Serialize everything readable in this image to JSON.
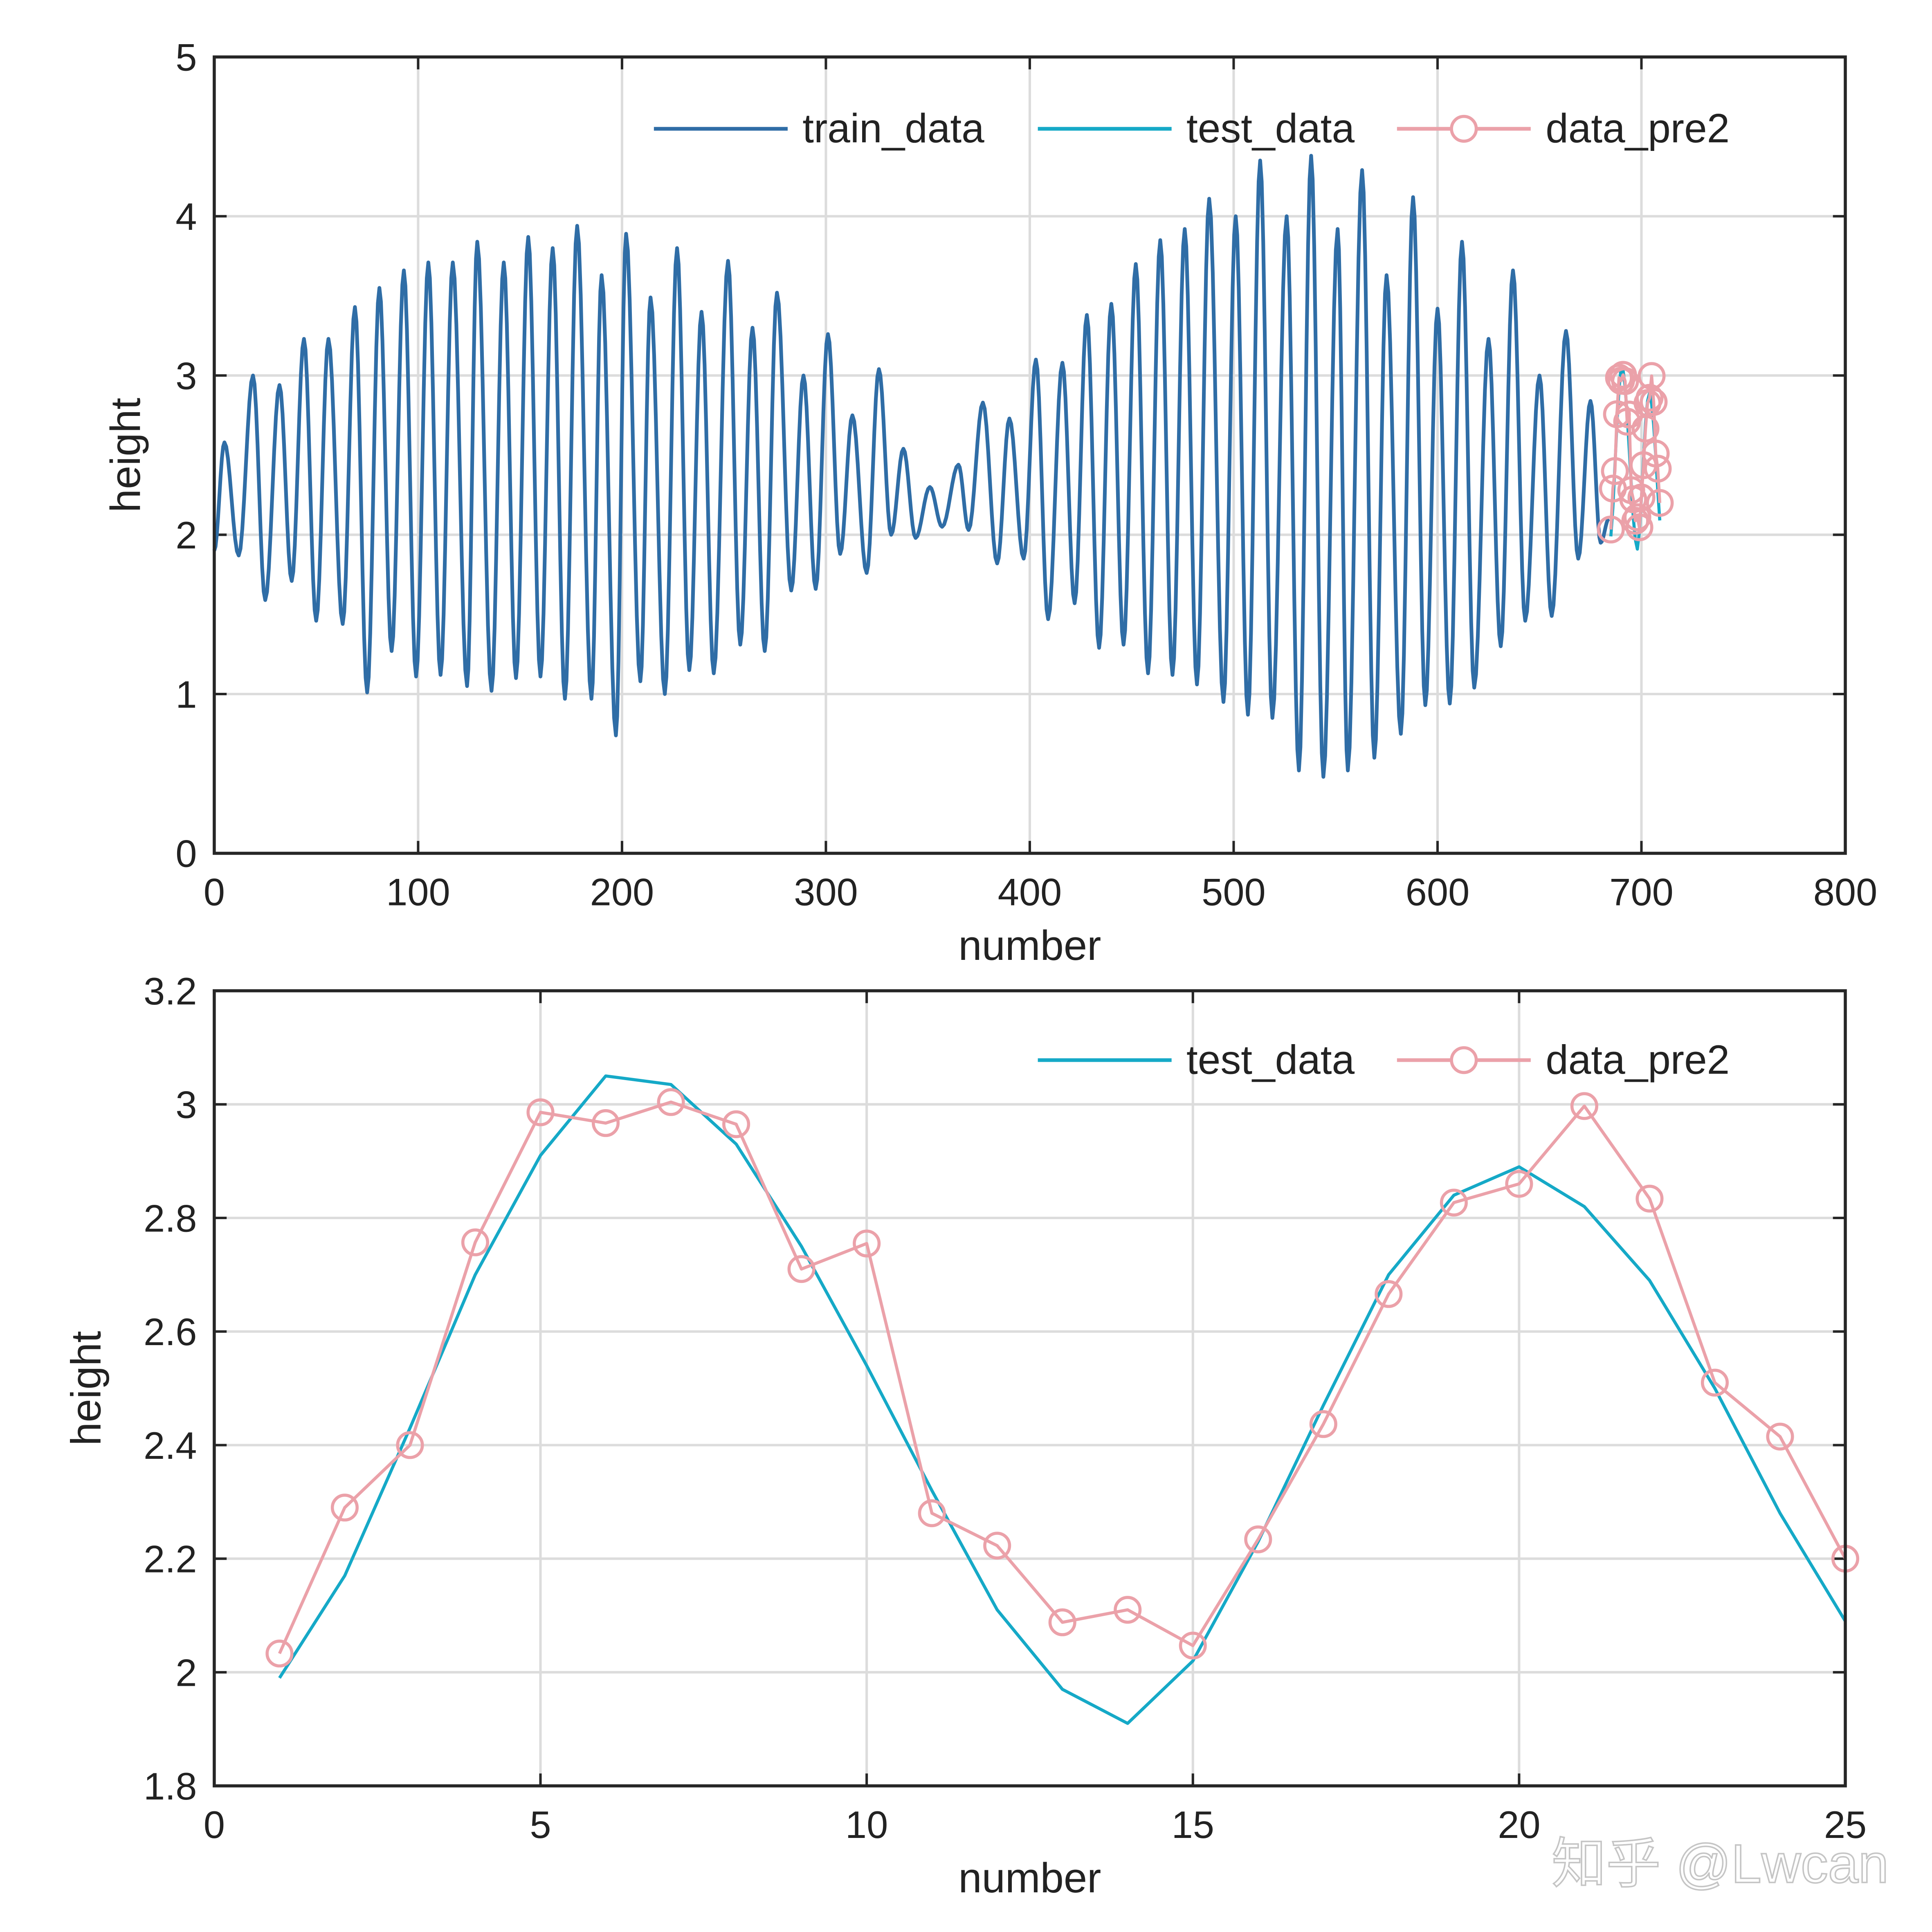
{
  "colors": {
    "train_data": "#2f6da6",
    "test_data": "#15a9c7",
    "data_pre2": "#eba1a9",
    "grid": "#dcdcdc",
    "axis": "#262626"
  },
  "watermark": "知乎 @Lwcan",
  "chart_data": [
    {
      "type": "line",
      "xlabel": "number",
      "ylabel": "height",
      "xlim": [
        0,
        800
      ],
      "ylim": [
        0,
        5
      ],
      "xticks": [
        0,
        100,
        200,
        300,
        400,
        500,
        600,
        700,
        800
      ],
      "yticks": [
        0,
        1,
        2,
        3,
        4,
        5
      ],
      "grid": true,
      "legend_position": "top-right",
      "legend": [
        "train_data",
        "test_data",
        "data_pre2"
      ],
      "series": [
        {
          "name": "train_data",
          "note_extrema": "local peaks and troughs (x, height)",
          "extrema": [
            [
              0,
              1.9
            ],
            [
              5,
              2.58
            ],
            [
              12,
              1.87
            ],
            [
              19,
              3.0
            ],
            [
              25,
              1.59
            ],
            [
              32,
              2.94
            ],
            [
              38,
              1.71
            ],
            [
              44,
              3.23
            ],
            [
              50,
              1.46
            ],
            [
              56,
              3.23
            ],
            [
              63,
              1.44
            ],
            [
              69,
              3.43
            ],
            [
              75,
              1.01
            ],
            [
              81,
              3.55
            ],
            [
              87,
              1.27
            ],
            [
              93,
              3.66
            ],
            [
              99,
              1.11
            ],
            [
              105,
              3.71
            ],
            [
              111,
              1.12
            ],
            [
              117,
              3.71
            ],
            [
              124,
              1.05
            ],
            [
              129,
              3.84
            ],
            [
              136,
              1.02
            ],
            [
              142,
              3.71
            ],
            [
              148,
              1.1
            ],
            [
              154,
              3.87
            ],
            [
              160,
              1.11
            ],
            [
              166,
              3.8
            ],
            [
              172,
              0.97
            ],
            [
              178,
              3.94
            ],
            [
              185,
              0.97
            ],
            [
              190,
              3.63
            ],
            [
              197,
              0.74
            ],
            [
              202,
              3.89
            ],
            [
              209,
              1.08
            ],
            [
              214,
              3.49
            ],
            [
              221,
              1.0
            ],
            [
              227,
              3.8
            ],
            [
              233,
              1.15
            ],
            [
              239,
              3.4
            ],
            [
              245,
              1.13
            ],
            [
              252,
              3.72
            ],
            [
              258,
              1.31
            ],
            [
              264,
              3.3
            ],
            [
              270,
              1.27
            ],
            [
              276,
              3.52
            ],
            [
              283,
              1.65
            ],
            [
              289,
              3.0
            ],
            [
              295,
              1.66
            ],
            [
              301,
              3.26
            ],
            [
              307,
              1.88
            ],
            [
              313,
              2.75
            ],
            [
              320,
              1.76
            ],
            [
              326,
              3.04
            ],
            [
              332,
              2.0
            ],
            [
              338,
              2.54
            ],
            [
              344,
              1.98
            ],
            [
              351,
              2.3
            ],
            [
              357,
              2.05
            ],
            [
              365,
              2.44
            ],
            [
              370,
              2.03
            ],
            [
              377,
              2.83
            ],
            [
              384,
              1.82
            ],
            [
              390,
              2.73
            ],
            [
              397,
              1.85
            ],
            [
              403,
              3.1
            ],
            [
              409,
              1.47
            ],
            [
              416,
              3.08
            ],
            [
              422,
              1.57
            ],
            [
              428,
              3.38
            ],
            [
              434,
              1.29
            ],
            [
              440,
              3.45
            ],
            [
              446,
              1.31
            ],
            [
              452,
              3.7
            ],
            [
              458,
              1.13
            ],
            [
              464,
              3.85
            ],
            [
              470,
              1.12
            ],
            [
              476,
              3.92
            ],
            [
              482,
              1.06
            ],
            [
              488,
              4.11
            ],
            [
              495,
              0.95
            ],
            [
              501,
              4.0
            ],
            [
              507,
              0.87
            ],
            [
              513,
              4.35
            ],
            [
              519,
              0.85
            ],
            [
              526,
              4.0
            ],
            [
              532,
              0.52
            ],
            [
              538,
              4.38
            ],
            [
              544,
              0.48
            ],
            [
              551,
              3.92
            ],
            [
              556,
              0.52
            ],
            [
              563,
              4.29
            ],
            [
              569,
              0.6
            ],
            [
              575,
              3.63
            ],
            [
              582,
              0.75
            ],
            [
              588,
              4.12
            ],
            [
              594,
              0.93
            ],
            [
              600,
              3.42
            ],
            [
              606,
              0.94
            ],
            [
              612,
              3.84
            ],
            [
              618,
              1.04
            ],
            [
              625,
              3.23
            ],
            [
              631,
              1.3
            ],
            [
              637,
              3.66
            ],
            [
              643,
              1.46
            ],
            [
              650,
              3.0
            ],
            [
              656,
              1.49
            ],
            [
              663,
              3.28
            ],
            [
              669,
              1.85
            ],
            [
              675,
              2.84
            ],
            [
              680,
              1.95
            ],
            [
              684,
              2.1
            ]
          ]
        },
        {
          "name": "test_data",
          "x_start": 685
        },
        {
          "name": "data_pre2",
          "x_start": 685,
          "marker": "circle"
        }
      ]
    },
    {
      "type": "line",
      "xlabel": "number",
      "ylabel": "height",
      "xlim": [
        0,
        25
      ],
      "ylim": [
        1.8,
        3.2
      ],
      "xticks": [
        0,
        5,
        10,
        15,
        20,
        25
      ],
      "yticks": [
        1.8,
        2,
        2.2,
        2.4,
        2.6,
        2.8,
        3,
        3.2
      ],
      "grid": true,
      "legend_position": "top-right",
      "legend": [
        "test_data",
        "data_pre2"
      ],
      "x": [
        1,
        2,
        3,
        4,
        5,
        6,
        7,
        8,
        9,
        10,
        11,
        12,
        13,
        14,
        15,
        16,
        17,
        18,
        19,
        20,
        21,
        22,
        23,
        24,
        25
      ],
      "series": [
        {
          "name": "test_data",
          "values": [
            1.99,
            2.17,
            2.43,
            2.7,
            2.91,
            3.05,
            3.035,
            2.93,
            2.75,
            2.54,
            2.32,
            2.11,
            1.97,
            1.91,
            2.02,
            2.23,
            2.47,
            2.7,
            2.84,
            2.89,
            2.82,
            2.69,
            2.5,
            2.28,
            2.09
          ]
        },
        {
          "name": "data_pre2",
          "marker": "circle",
          "values": [
            2.033,
            2.29,
            2.4,
            2.757,
            2.986,
            2.967,
            3.004,
            2.965,
            2.71,
            2.755,
            2.28,
            2.223,
            2.088,
            2.11,
            2.047,
            2.234,
            2.437,
            2.666,
            2.827,
            2.86,
            2.997,
            2.834,
            2.51,
            2.415,
            2.2
          ]
        }
      ]
    }
  ]
}
